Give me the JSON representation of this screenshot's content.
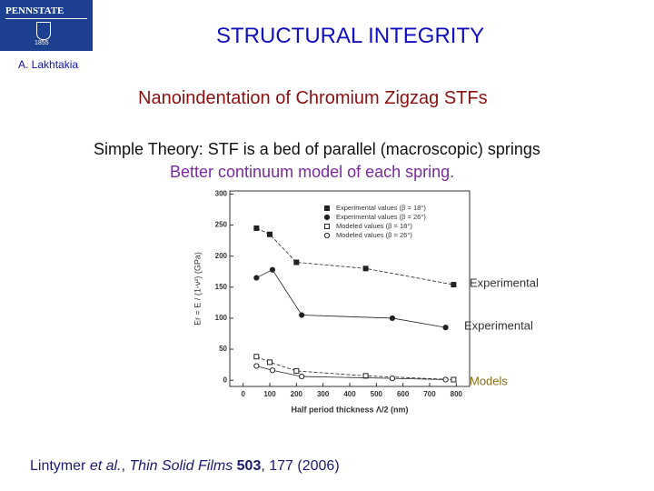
{
  "logo": {
    "name": "PENNSTATE",
    "year": "1855"
  },
  "header": {
    "title": "STRUCTURAL INTEGRITY",
    "author": "A. Lakhtakia"
  },
  "heading": "Nanoindentation of Chromium Zigzag STFs",
  "lines": [
    "Simple Theory: STF is a bed of parallel (macroscopic) springs",
    "Better continuum model of each spring."
  ],
  "citation": {
    "authors": "Lintymer",
    "etal": "et al.",
    "journal": "Thin Solid Films",
    "volume": "503",
    "rest": ", 177 (2006)"
  },
  "chart_data": {
    "type": "line",
    "x_label": "Half period thickness Λ/2 (nm)",
    "y_label": "Er = E / (1-ν²) (GPa)",
    "xlim": [
      -50,
      850
    ],
    "xticks": [
      0,
      100,
      200,
      300,
      400,
      500,
      600,
      700,
      800
    ],
    "ylim": [
      -10,
      305
    ],
    "yticks": [
      0,
      50,
      100,
      150,
      200,
      250,
      300
    ],
    "series": [
      {
        "name": "Experimental values (β = 18°)",
        "marker": "filled-square",
        "color": "#222222",
        "x": [
          50,
          100,
          200,
          460,
          790
        ],
        "values": [
          245,
          235,
          190,
          180,
          154
        ]
      },
      {
        "name": "Experimental values (β = 26°)",
        "marker": "filled-circle",
        "color": "#222222",
        "x": [
          50,
          110,
          220,
          560,
          760
        ],
        "values": [
          165,
          178,
          105,
          100,
          85
        ]
      },
      {
        "name": "Modeled values (β = 18°)",
        "marker": "open-square",
        "color": "#222222",
        "x": [
          50,
          100,
          200,
          460,
          790
        ],
        "values": [
          38,
          29,
          15,
          7,
          1
        ]
      },
      {
        "name": "Modeled values (β = 26°)",
        "marker": "open-circle",
        "color": "#222222",
        "x": [
          50,
          110,
          220,
          560,
          760
        ],
        "values": [
          23,
          16,
          6,
          3,
          1
        ]
      }
    ],
    "annotations": [
      "Experimental",
      "Experimental",
      "Models"
    ]
  }
}
